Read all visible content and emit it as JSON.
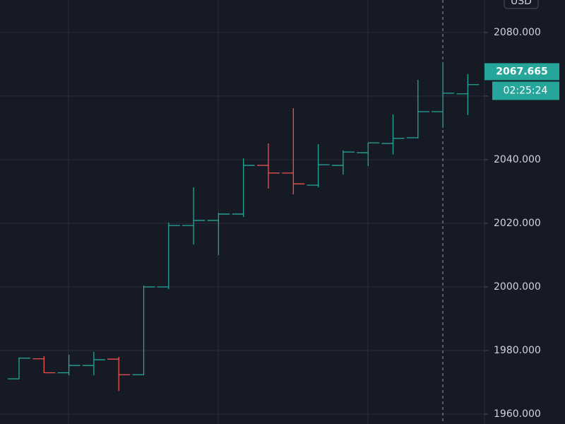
{
  "chart_data": {
    "type": "ohlc",
    "currency": "USD",
    "categories": [
      null,
      null,
      null,
      null,
      null,
      null,
      null,
      null,
      null,
      null,
      null,
      null,
      null,
      null,
      null,
      null,
      null,
      null,
      null
    ],
    "open": [
      1971.1,
      1977.4,
      1973.0,
      1975.3,
      1977.3,
      1972.4,
      2000.0,
      2019.3,
      2020.9,
      2022.9,
      2038.2,
      2035.8,
      2032.0,
      2038.2,
      2042.2,
      2045.1,
      2046.9,
      2055.1,
      2060.7
    ],
    "high": [
      1977.8,
      1978.2,
      1978.7,
      1979.6,
      1978.0,
      2000.4,
      2020.2,
      2031.3,
      2023.3,
      2040.4,
      2045.1,
      2056.2,
      2044.9,
      2042.9,
      2045.3,
      2054.2,
      2065.1,
      2070.7,
      2066.9
    ],
    "low": [
      1971.0,
      1972.9,
      1972.2,
      1972.2,
      1967.3,
      1972.2,
      1999.3,
      2013.3,
      2010.0,
      2022.0,
      2030.9,
      2029.1,
      2031.3,
      2035.3,
      2038.0,
      2041.6,
      2046.7,
      2050.0,
      2054.0
    ],
    "close": [
      1977.6,
      1973.0,
      1975.3,
      1977.1,
      1972.4,
      2000.0,
      2019.3,
      2020.9,
      2022.9,
      2038.2,
      2035.8,
      2032.4,
      2038.4,
      2042.4,
      2045.3,
      2046.7,
      2055.1,
      2060.9,
      2063.6
    ],
    "up_color": "#26a69a",
    "down_color": "#ef5350",
    "ylim": [
      1956.9,
      2090.2
    ],
    "yticks": [
      {
        "value": 1960,
        "label": "1960.000"
      },
      {
        "value": 1980,
        "label": "1980.000"
      },
      {
        "value": 2000,
        "label": "2000.000"
      },
      {
        "value": 2020,
        "label": "2020.000"
      },
      {
        "value": 2040,
        "label": "2040.000"
      },
      {
        "value": 2060,
        "label": "2060.000"
      },
      {
        "value": 2080,
        "label": "2080.000"
      }
    ],
    "grid": true,
    "last_price": 2067.665,
    "countdown": "02:25:24"
  }
}
